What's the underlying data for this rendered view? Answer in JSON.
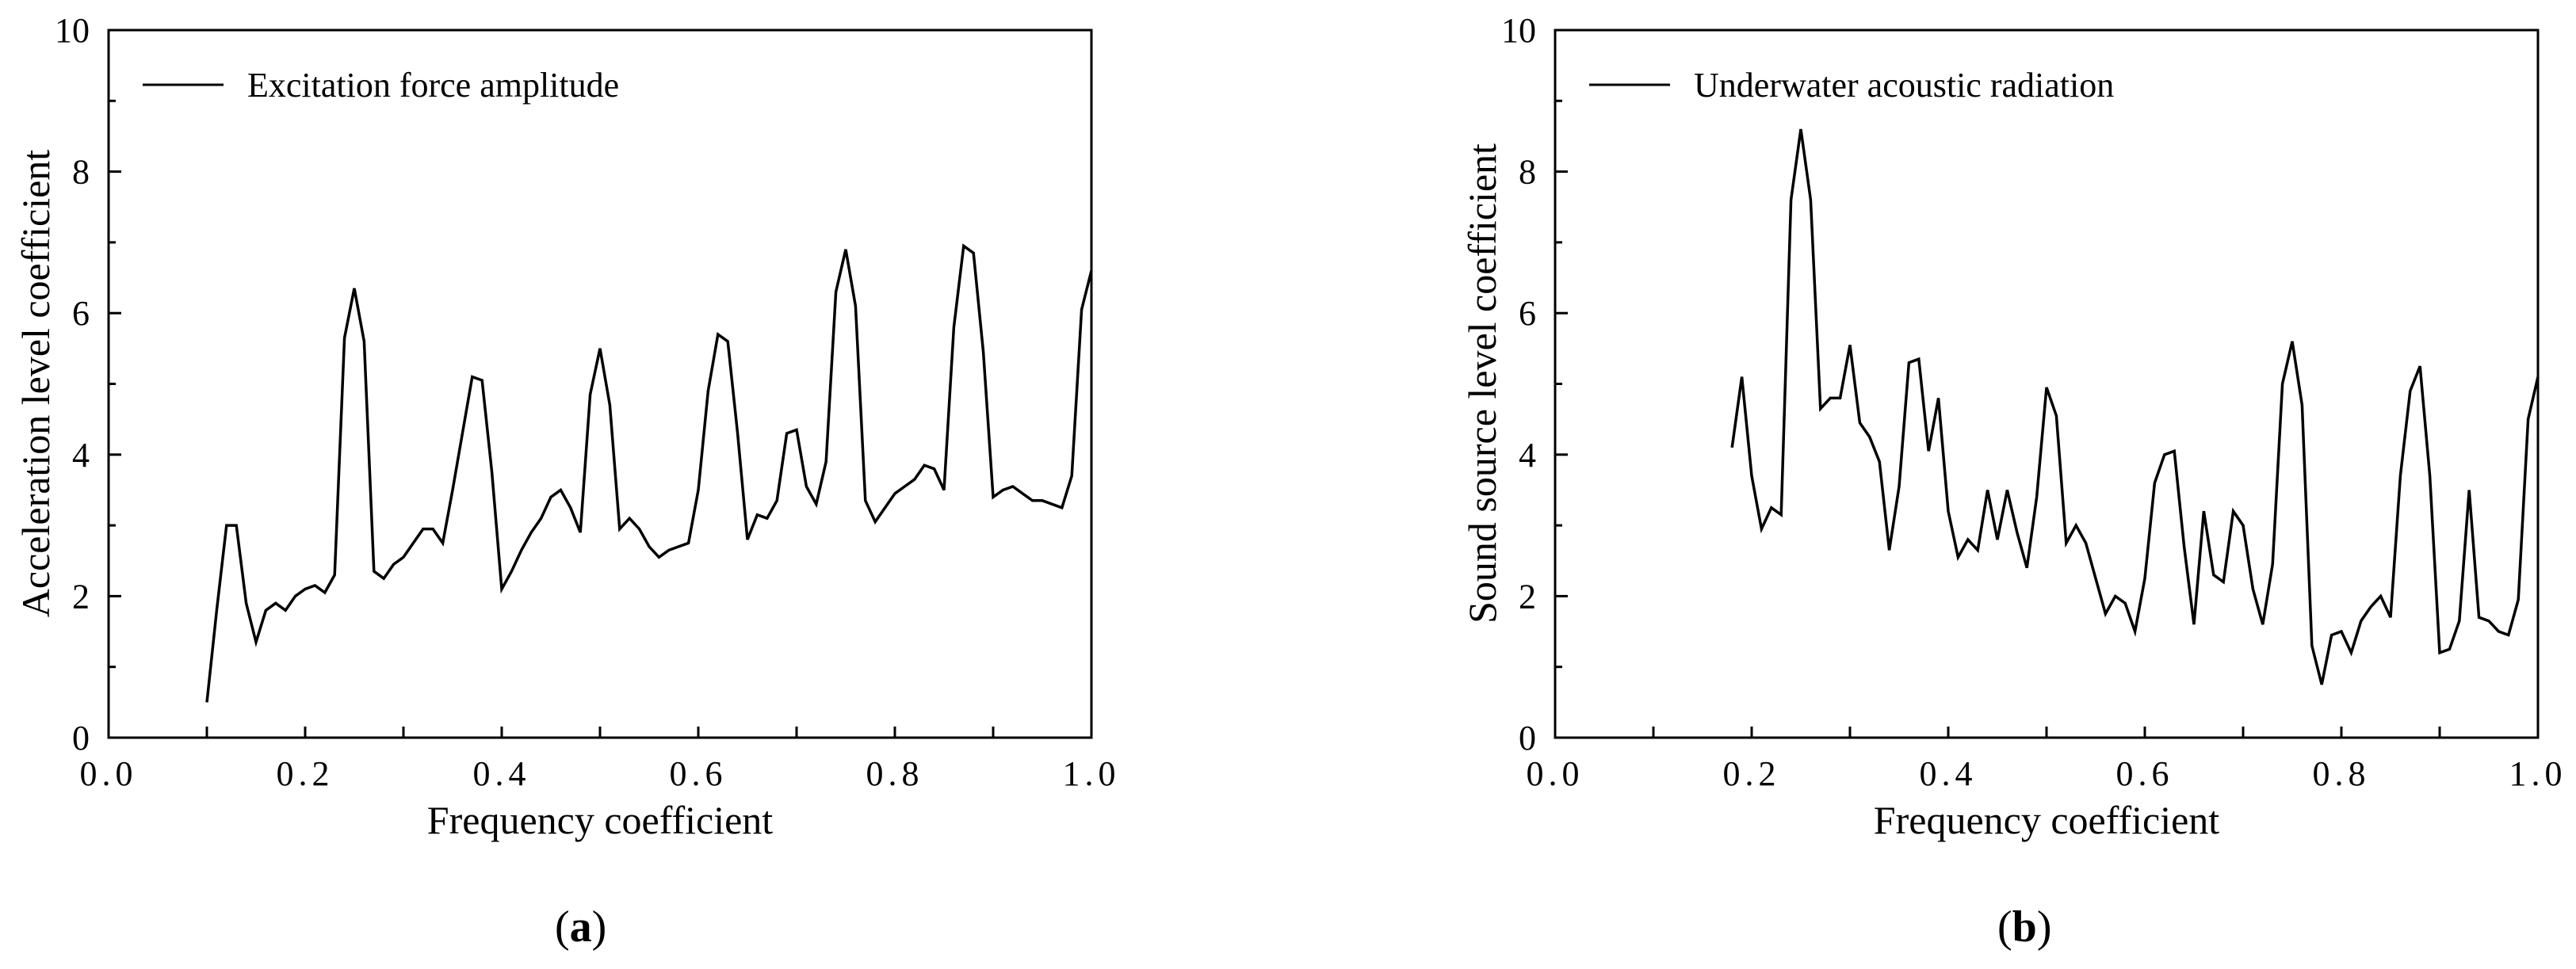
{
  "chart_data": [
    {
      "type": "line",
      "panel_label": "a",
      "xlabel": "Frequency coefficient",
      "ylabel": "Acceleration level coefficient",
      "xlim": [
        0.0,
        1.0
      ],
      "ylim": [
        0,
        10
      ],
      "x_ticks": [
        0.0,
        0.2,
        0.4,
        0.6,
        0.8,
        1.0
      ],
      "x_tick_labels": [
        "0.0",
        "0.2",
        "0.4",
        "0.6",
        "0.8",
        "1.0"
      ],
      "y_ticks": [
        0,
        2,
        4,
        6,
        8,
        10
      ],
      "y_tick_labels": [
        "0",
        "2",
        "4",
        "6",
        "8",
        "10"
      ],
      "grid": false,
      "legend_position": "top-left",
      "series": [
        {
          "name": "Excitation force amplitude",
          "color": "#000000",
          "x": [
            0.1,
            0.11,
            0.12,
            0.13,
            0.14,
            0.15,
            0.16,
            0.17,
            0.18,
            0.19,
            0.2,
            0.21,
            0.22,
            0.23,
            0.24,
            0.25,
            0.26,
            0.27,
            0.28,
            0.29,
            0.3,
            0.31,
            0.32,
            0.33,
            0.34,
            0.35,
            0.36,
            0.37,
            0.38,
            0.39,
            0.4,
            0.41,
            0.42,
            0.43,
            0.44,
            0.45,
            0.46,
            0.47,
            0.48,
            0.49,
            0.5,
            0.51,
            0.52,
            0.53,
            0.54,
            0.55,
            0.56,
            0.57,
            0.58,
            0.59,
            0.6,
            0.61,
            0.62,
            0.63,
            0.64,
            0.65,
            0.66,
            0.67,
            0.68,
            0.69,
            0.7,
            0.71,
            0.72,
            0.73,
            0.74,
            0.75,
            0.76,
            0.77,
            0.78,
            0.79,
            0.8,
            0.81,
            0.82,
            0.83,
            0.84,
            0.85,
            0.86,
            0.87,
            0.88,
            0.89,
            0.9,
            0.91,
            0.92,
            0.93,
            0.94,
            0.95,
            0.96,
            0.97,
            0.98,
            0.99,
            1.0
          ],
          "y": [
            0.5,
            1.8,
            3.0,
            3.0,
            1.9,
            1.35,
            1.8,
            1.9,
            1.8,
            2.0,
            2.1,
            2.15,
            2.05,
            2.3,
            5.65,
            6.35,
            5.6,
            2.35,
            2.25,
            2.45,
            2.55,
            2.75,
            2.95,
            2.95,
            2.75,
            3.5,
            4.3,
            5.1,
            5.05,
            3.75,
            2.1,
            2.35,
            2.65,
            2.9,
            3.1,
            3.4,
            3.5,
            3.25,
            2.9,
            4.85,
            5.5,
            4.7,
            2.95,
            3.1,
            2.95,
            2.7,
            2.55,
            2.65,
            2.7,
            2.75,
            3.5,
            4.9,
            5.7,
            5.6,
            4.3,
            2.8,
            3.15,
            3.1,
            3.35,
            4.3,
            4.35,
            3.55,
            3.3,
            3.9,
            6.3,
            6.9,
            6.1,
            3.35,
            3.05,
            3.25,
            3.45,
            3.55,
            3.65,
            3.85,
            3.8,
            3.5,
            5.8,
            6.95,
            6.85,
            5.45,
            3.4,
            3.5,
            3.55,
            3.45,
            3.35,
            3.35,
            3.3,
            3.25,
            3.7,
            6.05,
            6.6
          ]
        }
      ]
    },
    {
      "type": "line",
      "panel_label": "b",
      "xlabel": "Frequency coefficient",
      "ylabel": "Sound source level coefficient",
      "xlim": [
        0.0,
        1.0
      ],
      "ylim": [
        0,
        10
      ],
      "x_ticks": [
        0.0,
        0.2,
        0.4,
        0.6,
        0.8,
        1.0
      ],
      "x_tick_labels": [
        "0.0",
        "0.2",
        "0.4",
        "0.6",
        "0.8",
        "1.0"
      ],
      "y_ticks": [
        0,
        2,
        4,
        6,
        8,
        10
      ],
      "y_tick_labels": [
        "0",
        "2",
        "4",
        "6",
        "8",
        "10"
      ],
      "grid": false,
      "legend_position": "top-left",
      "series": [
        {
          "name": "Underwater acoustic radiation",
          "color": "#000000",
          "x": [
            0.18,
            0.19,
            0.2,
            0.21,
            0.22,
            0.23,
            0.24,
            0.25,
            0.26,
            0.27,
            0.28,
            0.29,
            0.3,
            0.31,
            0.32,
            0.33,
            0.34,
            0.35,
            0.36,
            0.37,
            0.38,
            0.39,
            0.4,
            0.41,
            0.42,
            0.43,
            0.44,
            0.45,
            0.46,
            0.47,
            0.48,
            0.49,
            0.5,
            0.51,
            0.52,
            0.53,
            0.54,
            0.55,
            0.56,
            0.57,
            0.58,
            0.59,
            0.6,
            0.61,
            0.62,
            0.63,
            0.64,
            0.65,
            0.66,
            0.67,
            0.68,
            0.69,
            0.7,
            0.71,
            0.72,
            0.73,
            0.74,
            0.75,
            0.76,
            0.77,
            0.78,
            0.79,
            0.8,
            0.81,
            0.82,
            0.83,
            0.84,
            0.85,
            0.86,
            0.87,
            0.88,
            0.89,
            0.9,
            0.91,
            0.92,
            0.93,
            0.94,
            0.95,
            0.96,
            0.97,
            0.98,
            0.99,
            1.0
          ],
          "y": [
            4.1,
            5.1,
            3.7,
            2.95,
            3.25,
            3.15,
            7.6,
            8.6,
            7.6,
            4.65,
            4.8,
            4.8,
            5.55,
            4.45,
            4.25,
            3.9,
            2.65,
            3.55,
            5.3,
            5.35,
            4.05,
            4.8,
            3.2,
            2.55,
            2.8,
            2.65,
            3.5,
            2.8,
            3.5,
            2.9,
            2.4,
            3.4,
            4.95,
            4.55,
            2.75,
            3.0,
            2.75,
            2.25,
            1.75,
            2.0,
            1.9,
            1.5,
            2.25,
            3.6,
            4.0,
            4.05,
            2.7,
            1.6,
            3.2,
            2.3,
            2.2,
            3.2,
            3.0,
            2.1,
            1.6,
            2.45,
            5.0,
            5.6,
            4.7,
            1.3,
            0.75,
            1.45,
            1.5,
            1.2,
            1.65,
            1.85,
            2.0,
            1.7,
            3.7,
            4.9,
            5.25,
            3.7,
            1.2,
            1.25,
            1.65,
            3.5,
            1.7,
            1.65,
            1.5,
            1.45,
            1.95,
            4.5,
            5.1
          ]
        }
      ]
    }
  ]
}
